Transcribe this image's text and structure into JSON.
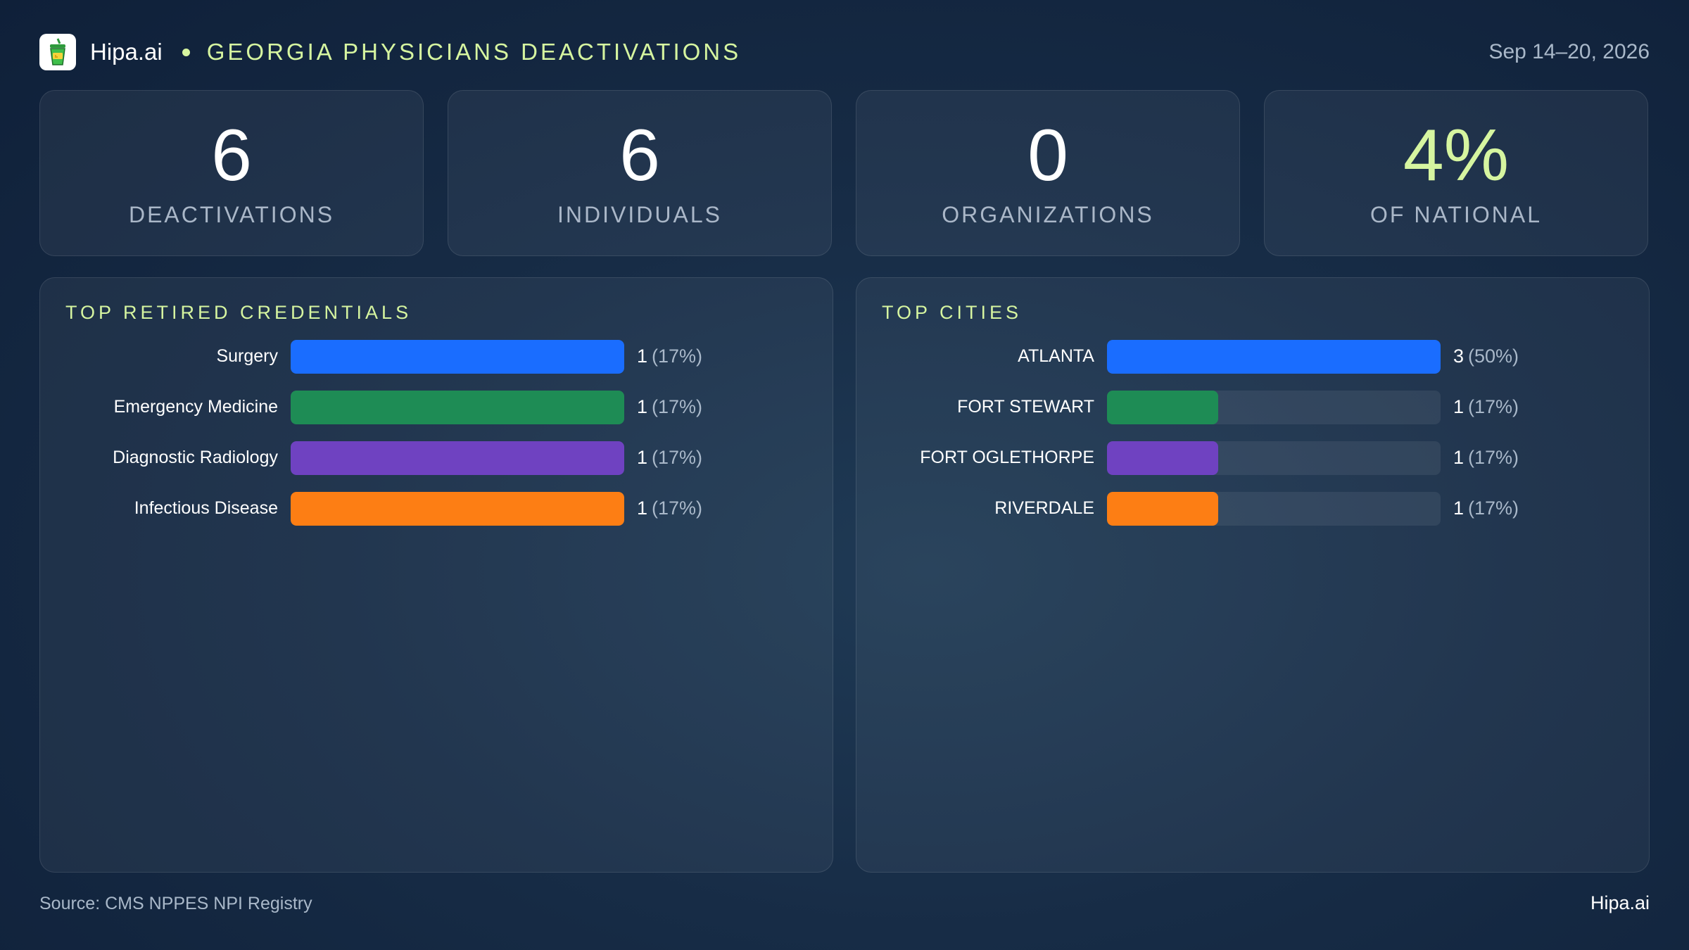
{
  "header": {
    "brand": "Hipa.ai",
    "title": "GEORGIA PHYSICIANS DEACTIVATIONS",
    "date": "Sep 14–20, 2026",
    "logo_icon": "hipa-cup-logo-icon"
  },
  "kpis": [
    {
      "value": "6",
      "label": "DEACTIVATIONS"
    },
    {
      "value": "6",
      "label": "INDIVIDUALS"
    },
    {
      "value": "0",
      "label": "ORGANIZATIONS"
    },
    {
      "value": "4%",
      "label": "OF NATIONAL"
    }
  ],
  "chart_data": [
    {
      "type": "bar",
      "orientation": "horizontal",
      "title": "TOP RETIRED CREDENTIALS",
      "categories": [
        "Surgery",
        "Emergency Medicine",
        "Diagnostic Radiology",
        "Infectious Disease"
      ],
      "values": [
        1,
        1,
        1,
        1
      ],
      "percent_labels": [
        "(17%)",
        "(17%)",
        "(17%)",
        "(17%)"
      ],
      "colors": [
        "#1a6dff",
        "#1e8c55",
        "#6f42c1",
        "#fd7e14"
      ],
      "max": 1
    },
    {
      "type": "bar",
      "orientation": "horizontal",
      "title": "TOP CITIES",
      "categories": [
        "ATLANTA",
        "FORT STEWART",
        "FORT OGLETHORPE",
        "RIVERDALE"
      ],
      "values": [
        3,
        1,
        1,
        1
      ],
      "percent_labels": [
        "(50%)",
        "(17%)",
        "(17%)",
        "(17%)"
      ],
      "colors": [
        "#1a6dff",
        "#1e8c55",
        "#6f42c1",
        "#fd7e14"
      ],
      "max": 3
    }
  ],
  "footer": {
    "source": "Source: CMS NPPES NPI Registry",
    "brand": "Hipa.ai"
  }
}
